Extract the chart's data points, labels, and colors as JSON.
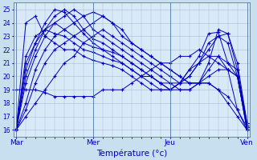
{
  "xlabel": "Température (°c)",
  "bg_color": "#c8dff0",
  "plot_bg_color": "#d8eaf8",
  "line_color": "#0000bb",
  "marker": "+",
  "markersize": 3,
  "linewidth": 0.7,
  "ylim": [
    15.5,
    25.5
  ],
  "yticks": [
    16,
    17,
    18,
    19,
    20,
    21,
    22,
    23,
    24,
    25
  ],
  "xtick_labels": [
    "Mar",
    "Mer",
    "Jeu",
    "Ven"
  ],
  "xtick_positions": [
    0,
    8,
    16,
    24
  ],
  "n_points": 25,
  "series": [
    [
      16.0,
      17.0,
      18.0,
      19.0,
      20.0,
      21.0,
      21.5,
      22.5,
      23.0,
      23.5,
      23.0,
      22.5,
      22.0,
      21.5,
      21.0,
      20.5,
      20.0,
      19.5,
      19.5,
      19.5,
      19.5,
      19.0,
      18.5,
      17.5,
      16.0
    ],
    [
      16.0,
      17.5,
      19.5,
      21.0,
      22.0,
      22.5,
      23.0,
      23.5,
      24.0,
      24.5,
      24.0,
      23.5,
      22.5,
      22.0,
      21.5,
      21.0,
      20.5,
      20.0,
      19.5,
      19.5,
      19.5,
      19.0,
      18.0,
      17.0,
      16.0
    ],
    [
      16.0,
      18.0,
      20.5,
      22.0,
      23.0,
      23.5,
      24.0,
      24.5,
      24.8,
      24.5,
      24.0,
      23.0,
      22.5,
      22.0,
      21.5,
      21.0,
      20.5,
      20.0,
      19.5,
      19.5,
      20.0,
      20.5,
      20.5,
      17.5,
      16.2
    ],
    [
      16.0,
      19.5,
      21.5,
      23.0,
      24.0,
      24.5,
      25.0,
      24.5,
      23.5,
      23.0,
      22.5,
      22.0,
      21.5,
      21.0,
      20.5,
      20.0,
      19.5,
      19.0,
      19.0,
      19.5,
      20.5,
      21.5,
      20.5,
      20.0,
      16.2
    ],
    [
      16.0,
      20.0,
      22.0,
      23.5,
      24.5,
      25.0,
      24.5,
      23.5,
      22.8,
      22.5,
      22.0,
      21.5,
      21.0,
      20.5,
      20.0,
      19.5,
      19.0,
      19.0,
      19.0,
      19.5,
      21.0,
      23.5,
      23.2,
      21.0,
      16.5
    ],
    [
      16.0,
      20.5,
      22.5,
      24.0,
      25.0,
      24.8,
      24.0,
      23.2,
      22.5,
      22.0,
      21.8,
      21.5,
      21.0,
      20.5,
      20.0,
      19.5,
      19.0,
      19.5,
      20.0,
      21.0,
      22.0,
      23.0,
      23.2,
      20.5,
      16.5
    ],
    [
      16.0,
      21.0,
      22.5,
      23.5,
      24.0,
      23.5,
      23.0,
      22.5,
      22.2,
      22.0,
      21.5,
      21.0,
      20.5,
      20.0,
      20.0,
      19.5,
      19.5,
      19.5,
      20.5,
      21.0,
      21.5,
      21.5,
      21.0,
      20.5,
      16.3
    ],
    [
      16.0,
      21.5,
      23.0,
      23.5,
      23.2,
      23.0,
      22.5,
      22.0,
      21.8,
      21.5,
      21.2,
      21.0,
      20.5,
      20.0,
      19.5,
      19.0,
      19.0,
      19.5,
      20.5,
      21.5,
      23.2,
      23.3,
      21.0,
      20.0,
      16.0
    ],
    [
      16.0,
      24.0,
      24.5,
      23.0,
      22.5,
      22.0,
      22.0,
      21.5,
      21.2,
      21.0,
      20.8,
      20.5,
      20.0,
      19.5,
      19.0,
      19.0,
      19.0,
      19.5,
      20.0,
      21.0,
      22.5,
      23.0,
      22.5,
      20.0,
      16.0
    ],
    [
      19.0,
      19.0,
      19.0,
      18.8,
      18.5,
      18.5,
      18.5,
      18.5,
      18.5,
      19.0,
      19.0,
      19.0,
      19.5,
      20.0,
      20.5,
      21.0,
      21.0,
      21.5,
      21.5,
      22.0,
      21.5,
      21.0,
      20.5,
      20.0,
      16.2
    ]
  ]
}
